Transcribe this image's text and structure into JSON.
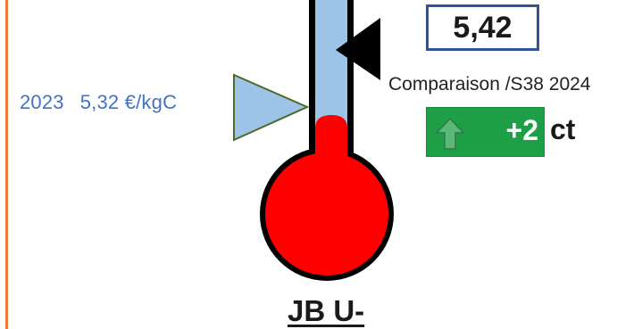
{
  "reference": {
    "year": "2023",
    "price": "5,32 €/kgC"
  },
  "current_value": "5,42",
  "comparison_label": "Comparaison /S38 2024",
  "delta": {
    "value": "+2",
    "unit": "ct",
    "direction": "up"
  },
  "caption": "JB U-",
  "colors": {
    "tube": "#9dc3e6",
    "mercury": "#ff0000",
    "reference_marker": "#9dc3e6",
    "current_marker": "#000000",
    "value_border": "#2f5597",
    "delta_background": "#1e9e46",
    "left_rule": "#ed7d31",
    "reference_text": "#4472c4"
  },
  "icons": {
    "reference_marker": "triangle-right-icon",
    "current_marker": "triangle-left-icon",
    "delta": "arrow-up-icon"
  }
}
